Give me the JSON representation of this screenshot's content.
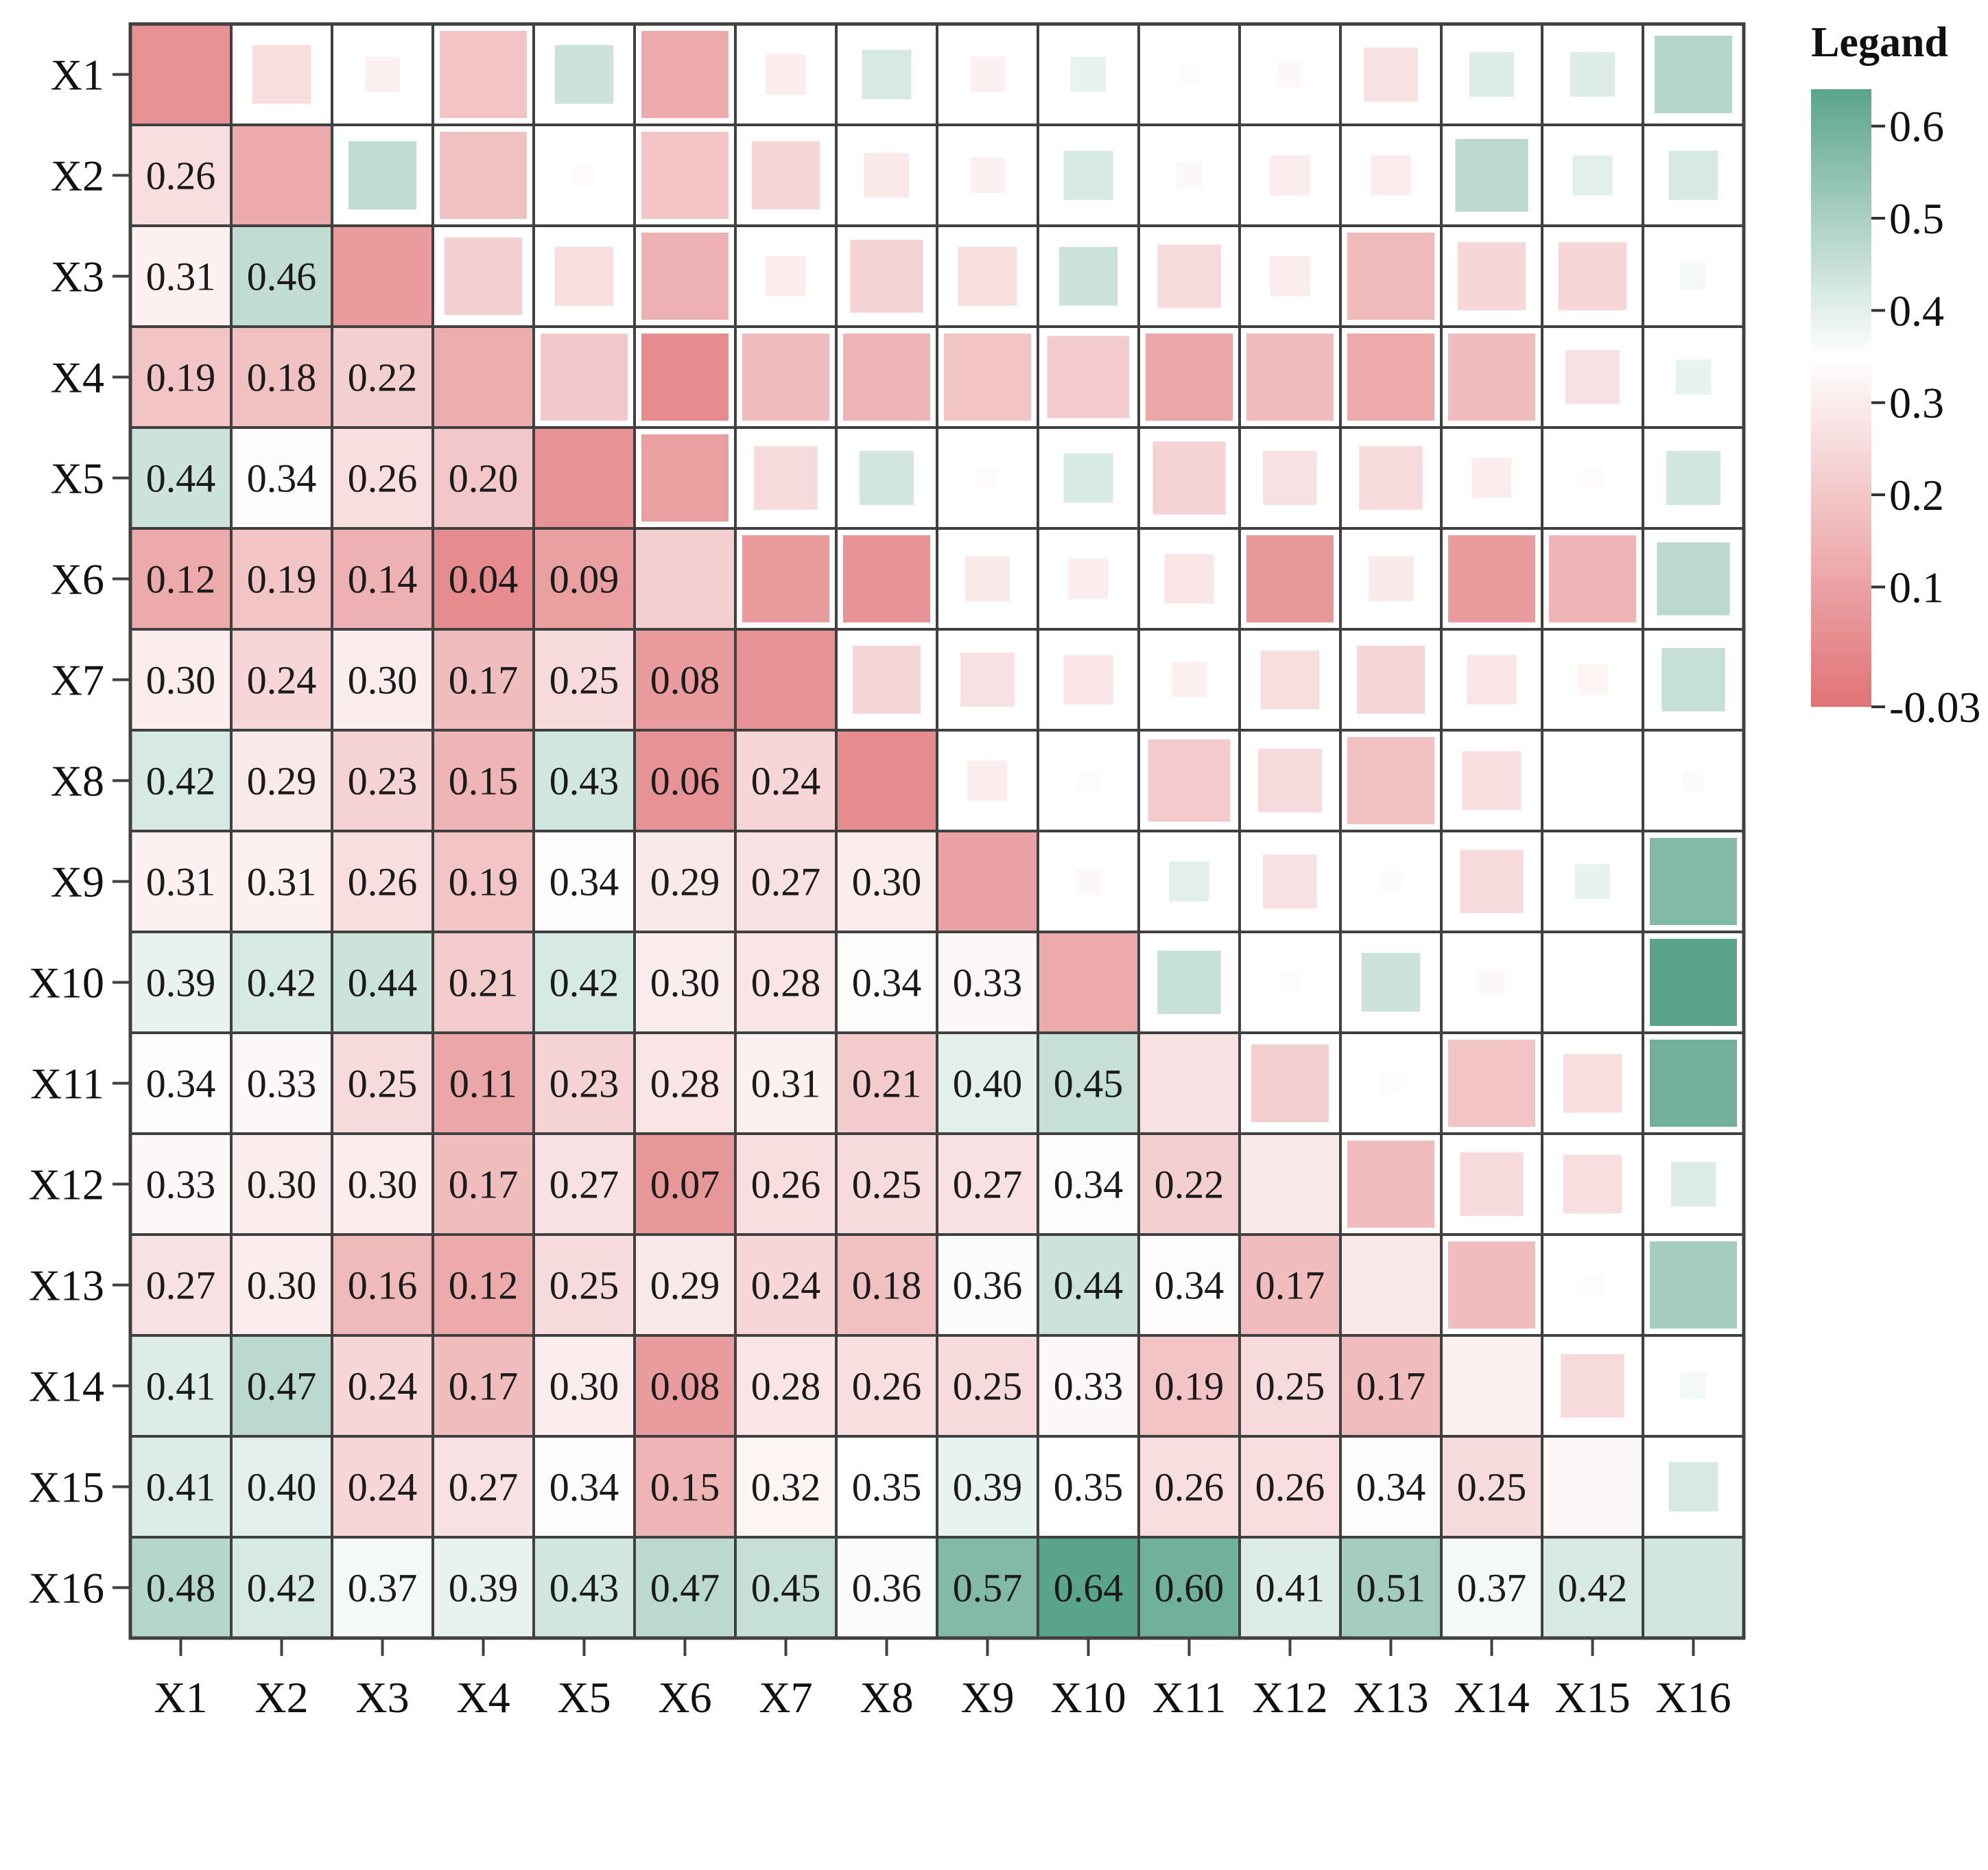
{
  "chart_data": {
    "type": "heatmap",
    "title": "",
    "xlabel": "",
    "ylabel": "",
    "variables": [
      "X1",
      "X2",
      "X3",
      "X4",
      "X5",
      "X6",
      "X7",
      "X8",
      "X9",
      "X10",
      "X11",
      "X12",
      "X13",
      "X14",
      "X15",
      "X16"
    ],
    "matrix": [
      [
        null,
        0.26,
        0.31,
        0.19,
        0.44,
        0.12,
        0.3,
        0.42,
        0.31,
        0.39,
        0.34,
        0.33,
        0.27,
        0.41,
        0.41,
        0.48
      ],
      [
        0.26,
        null,
        0.46,
        0.18,
        0.34,
        0.19,
        0.24,
        0.29,
        0.31,
        0.42,
        0.33,
        0.3,
        0.3,
        0.47,
        0.4,
        0.42
      ],
      [
        0.31,
        0.46,
        null,
        0.22,
        0.26,
        0.14,
        0.3,
        0.23,
        0.26,
        0.44,
        0.25,
        0.3,
        0.16,
        0.24,
        0.24,
        0.37
      ],
      [
        0.19,
        0.18,
        0.22,
        null,
        0.2,
        0.04,
        0.17,
        0.15,
        0.19,
        0.21,
        0.11,
        0.17,
        0.12,
        0.17,
        0.27,
        0.39
      ],
      [
        0.44,
        0.34,
        0.26,
        0.2,
        null,
        0.09,
        0.25,
        0.43,
        0.34,
        0.42,
        0.23,
        0.27,
        0.25,
        0.3,
        0.34,
        0.43
      ],
      [
        0.12,
        0.19,
        0.14,
        0.04,
        0.09,
        null,
        0.08,
        0.06,
        0.29,
        0.3,
        0.28,
        0.07,
        0.29,
        0.08,
        0.15,
        0.47
      ],
      [
        0.3,
        0.24,
        0.3,
        0.17,
        0.25,
        0.08,
        null,
        0.24,
        0.27,
        0.28,
        0.31,
        0.26,
        0.24,
        0.28,
        0.32,
        0.45
      ],
      [
        0.42,
        0.29,
        0.23,
        0.15,
        0.43,
        0.06,
        0.24,
        null,
        0.3,
        0.34,
        0.21,
        0.25,
        0.18,
        0.26,
        0.35,
        0.36
      ],
      [
        0.31,
        0.31,
        0.26,
        0.19,
        0.34,
        0.29,
        0.27,
        0.3,
        null,
        0.33,
        0.4,
        0.27,
        0.36,
        0.25,
        0.39,
        0.57
      ],
      [
        0.39,
        0.42,
        0.44,
        0.21,
        0.42,
        0.3,
        0.28,
        0.34,
        0.33,
        null,
        0.45,
        0.34,
        0.44,
        0.33,
        0.35,
        0.64
      ],
      [
        0.34,
        0.33,
        0.25,
        0.11,
        0.23,
        0.28,
        0.31,
        0.21,
        0.4,
        0.45,
        null,
        0.22,
        0.34,
        0.19,
        0.26,
        0.6
      ],
      [
        0.33,
        0.3,
        0.3,
        0.17,
        0.27,
        0.07,
        0.26,
        0.25,
        0.27,
        0.34,
        0.22,
        null,
        0.17,
        0.25,
        0.26,
        0.41
      ],
      [
        0.27,
        0.3,
        0.16,
        0.12,
        0.25,
        0.29,
        0.24,
        0.18,
        0.36,
        0.44,
        0.34,
        0.17,
        null,
        0.17,
        0.34,
        0.51
      ],
      [
        0.41,
        0.47,
        0.24,
        0.17,
        0.3,
        0.08,
        0.28,
        0.26,
        0.25,
        0.33,
        0.19,
        0.25,
        0.17,
        null,
        0.25,
        0.37
      ],
      [
        0.41,
        0.4,
        0.24,
        0.27,
        0.34,
        0.15,
        0.32,
        0.35,
        0.39,
        0.35,
        0.26,
        0.26,
        0.34,
        0.25,
        null,
        0.42
      ],
      [
        0.48,
        0.42,
        0.37,
        0.39,
        0.43,
        0.47,
        0.45,
        0.36,
        0.57,
        0.64,
        0.6,
        0.41,
        0.51,
        0.37,
        0.42,
        null
      ]
    ],
    "diagonal_values": [
      0.06,
      0.12,
      0.08,
      0.13,
      0.06,
      0.22,
      0.06,
      0.04,
      0.1,
      0.12,
      0.27,
      0.29,
      0.29,
      0.31,
      0.33,
      0.43
    ],
    "lower_triangle": "colored cells with value labels",
    "upper_triangle": "colored squares sized by value distance from 0.35",
    "colorscale": {
      "min": -0.03,
      "mid": 0.35,
      "max": 0.64,
      "low_color": "#e07275",
      "mid_color": "#ffffff",
      "high_color": "#5aa48b"
    },
    "legend": {
      "title": "Legand",
      "placement": "right",
      "ticks": [
        0.6,
        0.5,
        0.4,
        0.3,
        0.2,
        0.1,
        -0.03
      ],
      "tick_labels": [
        "0.6",
        "0.5",
        "0.4",
        "0.3",
        "0.2",
        "0.1",
        "-0.03"
      ]
    }
  }
}
